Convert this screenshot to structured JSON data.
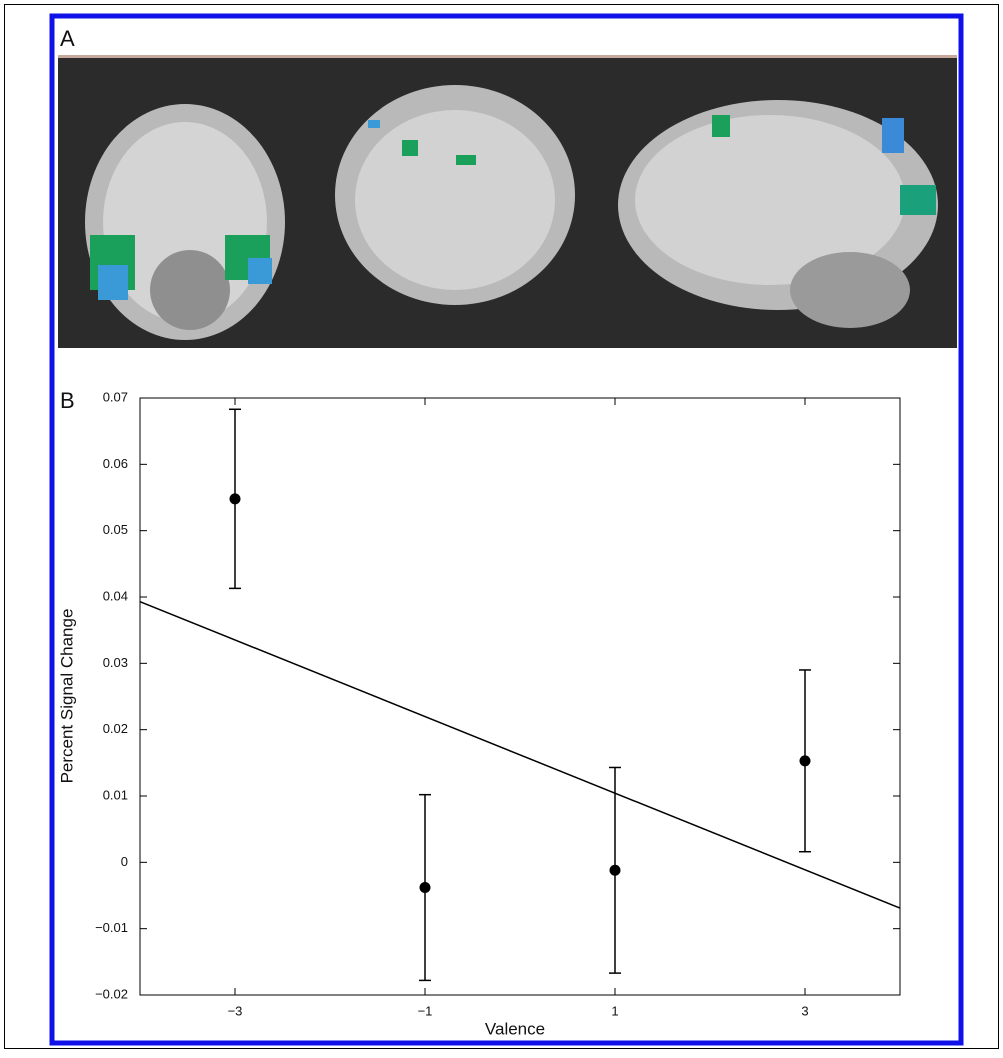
{
  "panel_a": {
    "label": "A"
  },
  "panel_b": {
    "label": "B"
  },
  "chart_data": {
    "type": "scatter",
    "x_label": "Valence",
    "y_label": "Percent Signal Change",
    "x": [
      -3,
      -1,
      1,
      3
    ],
    "series": [
      {
        "color": "#000000",
        "values": [
          0.0548,
          -0.0038,
          -0.0012,
          0.0153
        ],
        "errors": [
          0.0135,
          0.014,
          0.0155,
          0.0137
        ]
      }
    ],
    "fit": {
      "color": "#000000",
      "x": [
        -4,
        4
      ],
      "values": [
        0.0393,
        -0.0069
      ]
    },
    "xlim": [
      -4,
      4
    ],
    "xticks": [
      {
        "value": -3,
        "label": "−3"
      },
      {
        "value": -1,
        "label": "−1"
      },
      1,
      3
    ],
    "ylim": [
      -0.02,
      0.07
    ],
    "yticks": [
      {
        "value": -0.02,
        "label": "−0.02"
      },
      {
        "value": -0.01,
        "label": "−0.01"
      },
      0,
      0.01,
      0.02,
      0.03,
      0.04,
      0.05,
      0.06,
      0.07
    ]
  }
}
